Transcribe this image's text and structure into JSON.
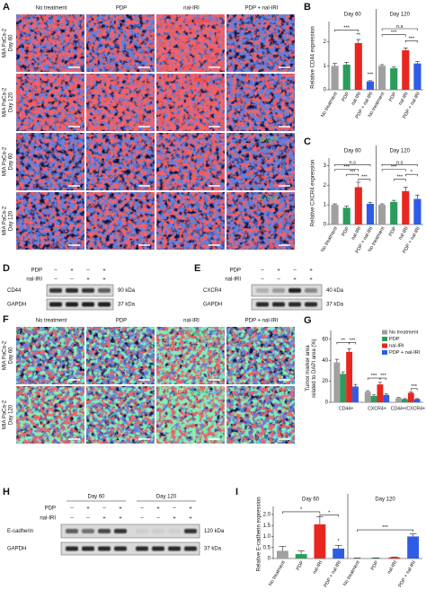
{
  "figure": {
    "A": {
      "letter": "A",
      "columns": [
        "No treatment",
        "PDP",
        "nal-IRI",
        "PDP + nal-IRI"
      ],
      "rows": [
        [
          "MIA PaCa-2",
          "Day 60"
        ],
        [
          "MIA PaCa-2",
          "Day 120"
        ],
        [
          "MIA PaCa-2",
          "Day 60"
        ],
        [
          "MIA PaCa-2",
          "Day 120"
        ]
      ],
      "stains": [
        [
          "CD44",
          "DAPI"
        ],
        [
          "CD44",
          "DAPI"
        ],
        [
          "CXCR4",
          "DAPI"
        ],
        [
          "CXCR4",
          "DAPI"
        ]
      ]
    },
    "D": {
      "letter": "D",
      "conditions": [
        {
          "name": "PDP",
          "signs": [
            "–",
            "+",
            "–",
            "+"
          ]
        },
        {
          "name": "nal-IRI",
          "signs": [
            "–",
            "–",
            "+",
            "+"
          ]
        }
      ],
      "bands": [
        {
          "name": "CD44",
          "size": "90 kDa"
        },
        {
          "name": "GAPDH",
          "size": "37 kDa"
        }
      ]
    },
    "E": {
      "letter": "E",
      "conditions": [
        {
          "name": "PDP",
          "signs": [
            "–",
            "+",
            "–",
            "+"
          ]
        },
        {
          "name": "nal-IRI",
          "signs": [
            "–",
            "–",
            "+",
            "+"
          ]
        }
      ],
      "bands": [
        {
          "name": "CXCR4",
          "size": "40 kDa"
        },
        {
          "name": "GAPDH",
          "size": "37 kDa"
        }
      ]
    },
    "F": {
      "letter": "F",
      "columns": [
        "No treatment",
        "PDP",
        "nal-IRI",
        "PDP + nal-IRI"
      ],
      "rows": [
        [
          "MIA PaCa-2",
          "Day 60"
        ],
        [
          "MIA PaCa-2",
          "Day 120"
        ]
      ],
      "stains": [
        [
          "CD44",
          "CXCR4",
          "DAPI"
        ],
        [
          "CD44",
          "CXCR4",
          "DAPI"
        ]
      ]
    },
    "H": {
      "letter": "H",
      "days": [
        "Day 60",
        "Day 120"
      ],
      "conditions": [
        {
          "name": "PDP",
          "signs": [
            "–",
            "+",
            "–",
            "+",
            "–",
            "+",
            "–",
            "+"
          ]
        },
        {
          "name": "nal-IRI",
          "signs": [
            "–",
            "–",
            "+",
            "+",
            "–",
            "–",
            "+",
            "+"
          ]
        }
      ],
      "bands": [
        {
          "name": "E-cadherin",
          "size": "120 kDa"
        },
        {
          "name": "GAPDH",
          "size": "37 kDa"
        }
      ]
    }
  },
  "chart_data": [
    {
      "type": "bar",
      "letter": "B",
      "y_label": "Relative CD44 expression",
      "categories": [
        "Day 60",
        "Day 120"
      ],
      "series": [
        {
          "name": "No treatment",
          "color": "#a0a0a0",
          "values": [
            1.0,
            1.0
          ],
          "errors": [
            0.1,
            0.05
          ]
        },
        {
          "name": "PDP",
          "color": "#2a9d5c",
          "values": [
            1.05,
            0.9
          ],
          "errors": [
            0.1,
            0.05
          ]
        },
        {
          "name": "nal-IRI",
          "color": "#e8261f",
          "values": [
            1.95,
            1.65
          ],
          "errors": [
            0.15,
            0.1
          ]
        },
        {
          "name": "PDP + nal-IRI",
          "color": "#2e5ce6",
          "values": [
            0.35,
            1.1
          ],
          "errors": [
            0.03,
            0.08
          ]
        }
      ],
      "ylim": [
        0,
        2.7
      ],
      "yticks": [
        0,
        1,
        2
      ],
      "annotations": [
        "***",
        "**",
        "n.s",
        "***",
        "***",
        "***"
      ]
    },
    {
      "type": "bar",
      "letter": "C",
      "y_label": "Relative CXCR4 expression",
      "categories": [
        "Day 60",
        "Day 120"
      ],
      "series": [
        {
          "name": "No treatment",
          "color": "#a0a0a0",
          "values": [
            1.0,
            1.0
          ],
          "errors": [
            0.05,
            0.05
          ]
        },
        {
          "name": "PDP",
          "color": "#2a9d5c",
          "values": [
            0.85,
            1.15
          ],
          "errors": [
            0.08,
            0.08
          ]
        },
        {
          "name": "nal-IRI",
          "color": "#e8261f",
          "values": [
            1.9,
            1.7
          ],
          "errors": [
            0.25,
            0.2
          ]
        },
        {
          "name": "PDP + nal-IRI",
          "color": "#2e5ce6",
          "values": [
            1.05,
            1.3
          ],
          "errors": [
            0.08,
            0.2
          ]
        }
      ],
      "ylim": [
        0,
        3.2
      ],
      "yticks": [
        0,
        1,
        2,
        3
      ],
      "annotations": [
        "n.s",
        "***",
        "***",
        "***",
        "n.s",
        "***",
        "*",
        "***"
      ]
    },
    {
      "type": "bar",
      "letter": "G",
      "y_label": [
        "Tumor marker area",
        "related to DAPI area (%)"
      ],
      "categories": [
        "CD44+",
        "CXCR4+",
        "CD44+/CXCR4+"
      ],
      "series": [
        {
          "name": "No treatment",
          "color": "#a0a0a0",
          "values": [
            38,
            10,
            4
          ],
          "errors": [
            3,
            1,
            0.5
          ]
        },
        {
          "name": "PDP",
          "color": "#2a9d5c",
          "values": [
            27,
            6,
            3
          ],
          "errors": [
            2,
            1,
            0.5
          ]
        },
        {
          "name": "nal-IRI",
          "color": "#e8261f",
          "values": [
            48,
            17,
            9
          ],
          "errors": [
            3,
            2,
            1
          ]
        },
        {
          "name": "PDP + nal-IRI",
          "color": "#2e5ce6",
          "values": [
            15,
            7,
            3
          ],
          "errors": [
            2,
            1,
            0.5
          ]
        }
      ],
      "ylim": [
        0,
        65
      ],
      "yticks": [
        0,
        20,
        40,
        60
      ],
      "legend": "top-right",
      "annotations": [
        "**",
        "***",
        "***",
        "***",
        "***"
      ]
    },
    {
      "type": "bar",
      "letter": "I",
      "y_label": "Relative E-cadherin expression",
      "categories": [
        "Day 60",
        "Day 120"
      ],
      "series": [
        {
          "name": "No treatment",
          "color": "#a0a0a0",
          "values": [
            0.35,
            0.02
          ],
          "errors": [
            0.2,
            0.01
          ]
        },
        {
          "name": "PDP",
          "color": "#2a9d5c",
          "values": [
            0.2,
            0.02
          ],
          "errors": [
            0.15,
            0.01
          ]
        },
        {
          "name": "nal-IRI",
          "color": "#e8261f",
          "values": [
            1.55,
            0.05
          ],
          "errors": [
            0.35,
            0.02
          ]
        },
        {
          "name": "PDP + nal-IRI",
          "color": "#2e5ce6",
          "values": [
            0.45,
            1.0
          ],
          "errors": [
            0.15,
            0.12
          ]
        }
      ],
      "ylim": [
        0,
        2.2
      ],
      "yticks": [
        0,
        0.5,
        {
          "value": 1,
          "label": "1.0"
        },
        1.5,
        {
          "value": 2,
          "label": "2.0"
        }
      ],
      "annotations": [
        "*",
        "*",
        "*",
        "***"
      ]
    }
  ]
}
